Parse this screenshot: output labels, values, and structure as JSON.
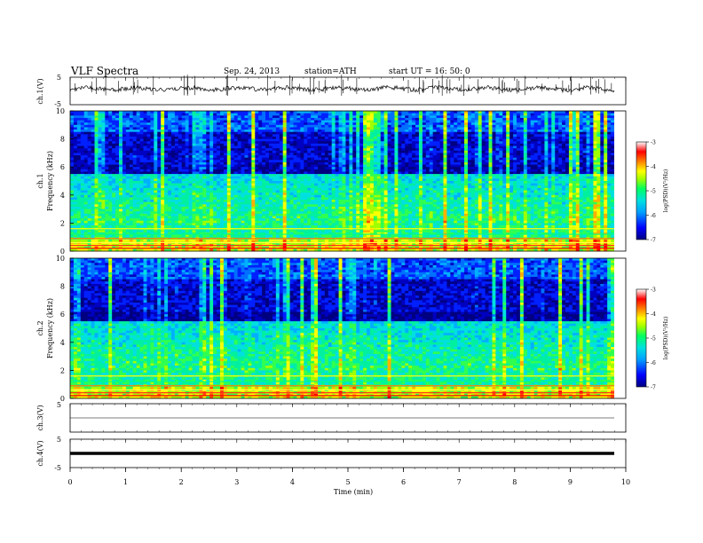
{
  "header": {
    "title": "VLF  Spectra",
    "date": "Sep. 24, 2013",
    "station": "station=ATH",
    "start": "start  UT  =   16: 50: 0"
  },
  "chart_data": [
    {
      "type": "line",
      "panel": "ch1-waveform",
      "ylabel": "ch.1(V)",
      "ylim": [
        -5,
        5
      ],
      "yticks": [
        5,
        -5
      ],
      "xlim": [
        0,
        10
      ],
      "description_free": true,
      "series": [
        {
          "name": "",
          "baseline": 0.1
        }
      ]
    },
    {
      "type": "heatmap",
      "panel": "ch1-spectrogram",
      "ylabel_top": "ch.1",
      "ylabel": "Frequency (kHz)",
      "ylim": [
        0,
        10
      ],
      "yticks": [
        0,
        2,
        4,
        6,
        8,
        10
      ],
      "xlim": [
        0,
        9.8
      ],
      "z_range": [
        -7,
        -3
      ],
      "colorbar": {
        "label": "log(PSD)(V²/Hz)",
        "ticks": [
          "-3",
          "-4",
          "-5",
          "-6",
          "-7"
        ],
        "colors": [
          "#000080",
          "#0000ff",
          "#00a0ff",
          "#00e0e0",
          "#00ff60",
          "#a0ff00",
          "#ffff00",
          "#ff8000",
          "#ff0000",
          "#ffffff"
        ]
      }
    },
    {
      "type": "heatmap",
      "panel": "ch2-spectrogram",
      "ylabel_top": "ch.2",
      "ylabel": "Frequency (kHz)",
      "ylim": [
        0,
        10
      ],
      "yticks": [
        0,
        2,
        4,
        6,
        8,
        10
      ],
      "xlim": [
        0,
        9.8
      ],
      "z_range": [
        -7,
        -3
      ],
      "colorbar": {
        "label": "log(PSD)(V²/Hz)",
        "ticks": [
          "-3",
          "-4",
          "-5",
          "-6",
          "-7"
        ]
      }
    },
    {
      "type": "line",
      "panel": "ch3-waveform",
      "ylabel": "ch.3(V)",
      "ylim": [
        -5,
        5
      ],
      "yticks": [
        5
      ],
      "series": [
        {
          "name": "",
          "baseline": 0.2
        }
      ]
    },
    {
      "type": "line",
      "panel": "ch4-waveform",
      "ylabel": "ch.4(V)",
      "ylim": [
        -5,
        5
      ],
      "yticks": [
        5,
        -5
      ],
      "series": [
        {
          "name": "",
          "baseline": 0.0
        }
      ]
    }
  ],
  "xaxis": {
    "label": "Time  (min)",
    "ticks": [
      "0",
      "1",
      "2",
      "3",
      "4",
      "5",
      "6",
      "7",
      "8",
      "9",
      "10"
    ],
    "range": [
      0,
      10
    ]
  }
}
